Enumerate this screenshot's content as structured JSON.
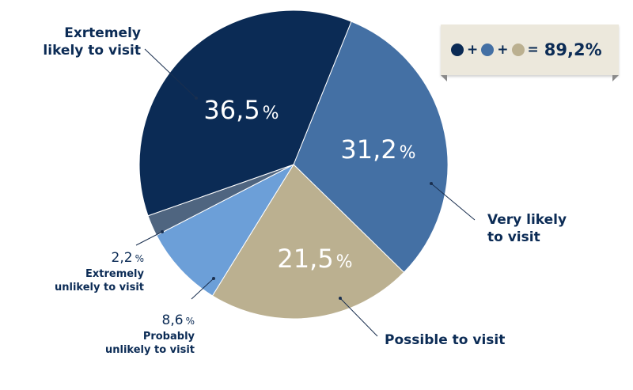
{
  "chart_data": {
    "type": "pie",
    "slices": [
      {
        "label": "Exrtemely likely to visit",
        "value": 36.5,
        "display": "36,5",
        "color": "#0b2b55"
      },
      {
        "label": "Very likely to visit",
        "value": 31.2,
        "display": "31,2",
        "color": "#4470a4"
      },
      {
        "label": "Possible to visit",
        "value": 21.5,
        "display": "21,5",
        "color": "#bbb090"
      },
      {
        "label": "Probably unlikely to visit",
        "value": 8.6,
        "display": "8,6",
        "color": "#6c9fd8"
      },
      {
        "label": "Extremely unlikely to visit",
        "value": 2.2,
        "display": "2,2",
        "color": "#4f6580"
      }
    ],
    "percent_sign": "%"
  },
  "legend": {
    "dots": [
      "#0b2b55",
      "#4470a4",
      "#bbb090"
    ],
    "plus": "+",
    "equals": "=",
    "total": "89,2%"
  }
}
